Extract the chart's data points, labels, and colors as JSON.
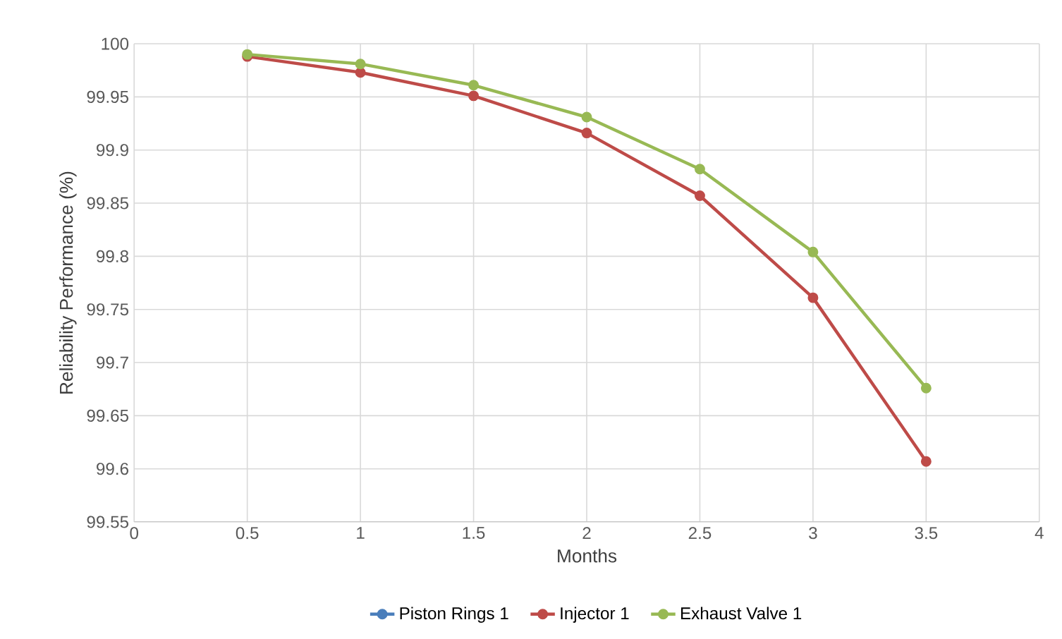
{
  "chart_data": {
    "type": "line",
    "xlabel": "Months",
    "ylabel": "Reliability Performance (%)",
    "x": [
      0.5,
      1,
      1.5,
      2,
      2.5,
      3,
      3.5
    ],
    "series": [
      {
        "name": "Piston Rings 1",
        "color": "#4a7ebb",
        "values": [
          null,
          null,
          null,
          null,
          null,
          null,
          null
        ]
      },
      {
        "name": "Injector 1",
        "color": "#be4b48",
        "values": [
          99.988,
          99.973,
          99.951,
          99.916,
          99.857,
          99.761,
          99.607
        ]
      },
      {
        "name": "Exhaust Valve 1",
        "color": "#98b954",
        "values": [
          99.99,
          99.981,
          99.961,
          99.931,
          99.882,
          99.804,
          99.676
        ]
      }
    ],
    "xlim": [
      0,
      4
    ],
    "xticks": [
      0,
      0.5,
      1,
      1.5,
      2,
      2.5,
      3,
      3.5,
      4
    ],
    "ylim": [
      99.55,
      100
    ],
    "yticks": [
      99.55,
      99.6,
      99.65,
      99.7,
      99.75,
      99.8,
      99.85,
      99.9,
      99.95,
      100
    ],
    "grid": true,
    "legend": "bottom",
    "marker": "circle",
    "line_style": "solid"
  }
}
